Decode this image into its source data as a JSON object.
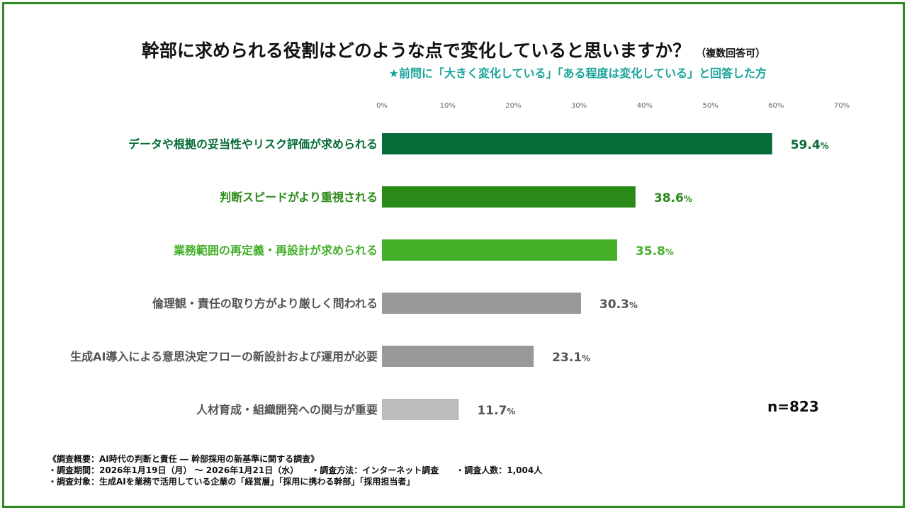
{
  "title": "幹部に求められる役割はどのような点で変化していると思いますか？",
  "title_note": "（複数回答可）",
  "subtitle": "★前問に「大きく変化している」「ある程度は変化している」と回答した方",
  "n_label": "n=823",
  "chart_data": {
    "type": "bar",
    "orientation": "horizontal",
    "title": "幹部に求められる役割はどのような点で変化していると思いますか？",
    "xlim": [
      0,
      70
    ],
    "x_ticks": [
      0,
      10,
      20,
      30,
      40,
      50,
      60,
      70
    ],
    "x_tick_labels": [
      "0%",
      "10%",
      "20%",
      "30%",
      "40%",
      "50%",
      "60%",
      "70%"
    ],
    "categories": [
      "データや根拠の妥当性やリスク評価が求められる",
      "判断スピードがより重視される",
      "業務範囲の再定義・再設計が求められる",
      "倫理観・責任の取り方がより厳しく問われる",
      "生成AI導入による意思決定フローの新設計および運用が必要",
      "人材育成・組織開発への関与が重要"
    ],
    "values": [
      59.4,
      38.6,
      35.8,
      30.3,
      23.1,
      11.7
    ],
    "value_labels": [
      "59.4",
      "38.6",
      "35.8",
      "30.3",
      "23.1",
      "11.7"
    ],
    "value_suffix": "%",
    "colors": [
      "#056b37",
      "#2a8a17",
      "#44b02a",
      "#999999",
      "#999999",
      "#bbbcbb"
    ],
    "label_colors": [
      "#056b37",
      "#2a8a17",
      "#44b02a",
      "#555555",
      "#555555",
      "#555555"
    ]
  },
  "footer": {
    "line1": "《調査概要：AI時代の判断と責任 ― 幹部採用の新基準に関する調査》",
    "line2": "・調査期間：2026年1月19日（月） 〜 2026年1月21日（水）　　・調査方法：インターネット調査　　・調査人数：1,004人",
    "line3": "・調査対象：生成AIを業務で活用している企業の「経営層」「採用に携わる幹部」「採用担当者」"
  }
}
